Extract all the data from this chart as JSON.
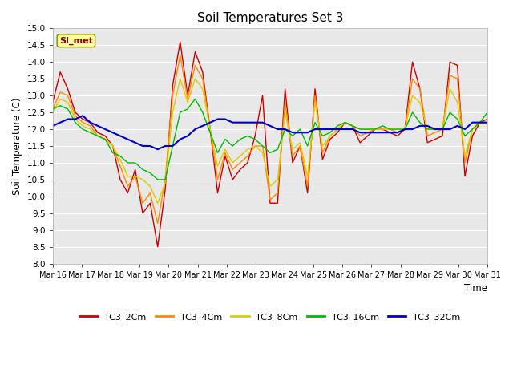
{
  "title": "Soil Temperatures Set 3",
  "xlabel": "Time",
  "ylabel": "Soil Temperature (C)",
  "ylim": [
    8.0,
    15.0
  ],
  "yticks": [
    8.0,
    8.5,
    9.0,
    9.5,
    10.0,
    10.5,
    11.0,
    11.5,
    12.0,
    12.5,
    13.0,
    13.5,
    14.0,
    14.5,
    15.0
  ],
  "legend_label": "SI_met",
  "series_order": [
    "TC3_2Cm",
    "TC3_4Cm",
    "TC3_8Cm",
    "TC3_16Cm",
    "TC3_32Cm"
  ],
  "series": {
    "TC3_2Cm": {
      "color": "#cc0000",
      "lw": 1.0
    },
    "TC3_4Cm": {
      "color": "#ff8800",
      "lw": 1.0
    },
    "TC3_8Cm": {
      "color": "#ddcc00",
      "lw": 1.0
    },
    "TC3_16Cm": {
      "color": "#00bb00",
      "lw": 1.0
    },
    "TC3_32Cm": {
      "color": "#0000cc",
      "lw": 1.5
    }
  },
  "xtick_labels": [
    "Mar 16",
    "Mar 17",
    "Mar 18",
    "Mar 19",
    "Mar 20",
    "Mar 21",
    "Mar 22",
    "Mar 23",
    "Mar 24",
    "Mar 25",
    "Mar 26",
    "Mar 27",
    "Mar 28",
    "Mar 29",
    "Mar 30",
    "Mar 31"
  ],
  "data": {
    "TC3_2Cm": [
      12.8,
      13.7,
      13.2,
      12.5,
      12.3,
      12.2,
      11.9,
      11.8,
      11.5,
      10.5,
      10.1,
      10.8,
      9.5,
      9.8,
      8.5,
      10.2,
      13.3,
      14.6,
      13.0,
      14.3,
      13.7,
      12.0,
      10.1,
      11.2,
      10.5,
      10.8,
      11.0,
      11.8,
      13.0,
      9.8,
      9.8,
      13.2,
      11.0,
      11.5,
      10.1,
      13.2,
      11.1,
      11.7,
      11.9,
      12.2,
      12.1,
      11.6,
      11.8,
      12.0,
      12.0,
      11.9,
      11.8,
      12.0,
      14.0,
      13.2,
      11.6,
      11.7,
      11.8,
      14.0,
      13.9,
      10.6,
      11.8,
      12.2,
      12.3
    ],
    "TC3_4Cm": [
      12.6,
      13.1,
      13.0,
      12.4,
      12.2,
      12.1,
      11.8,
      11.7,
      11.5,
      10.9,
      10.3,
      10.6,
      9.8,
      10.1,
      9.2,
      10.5,
      13.0,
      14.2,
      12.9,
      13.9,
      13.5,
      12.0,
      10.5,
      11.3,
      10.8,
      11.0,
      11.2,
      11.5,
      11.5,
      9.9,
      10.1,
      12.8,
      11.2,
      11.5,
      10.3,
      13.0,
      11.3,
      11.8,
      12.0,
      12.2,
      12.1,
      11.8,
      11.9,
      12.0,
      12.0,
      12.0,
      11.9,
      12.0,
      13.5,
      13.2,
      11.8,
      11.9,
      12.0,
      13.6,
      13.5,
      11.0,
      12.0,
      12.2,
      12.2
    ],
    "TC3_8Cm": [
      12.5,
      12.9,
      12.8,
      12.3,
      12.1,
      12.0,
      11.8,
      11.7,
      11.5,
      11.1,
      10.6,
      10.6,
      10.5,
      10.3,
      9.8,
      10.4,
      12.5,
      13.5,
      12.8,
      13.5,
      13.2,
      12.0,
      10.9,
      11.4,
      11.0,
      11.2,
      11.4,
      11.5,
      11.3,
      10.3,
      10.5,
      12.5,
      11.4,
      11.6,
      10.6,
      12.8,
      11.5,
      11.8,
      12.0,
      12.2,
      12.1,
      12.0,
      12.0,
      12.0,
      12.0,
      12.0,
      12.0,
      12.0,
      13.0,
      12.8,
      12.0,
      12.0,
      12.0,
      13.2,
      12.8,
      11.2,
      12.0,
      12.2,
      12.2
    ],
    "TC3_16Cm": [
      12.6,
      12.7,
      12.6,
      12.2,
      12.0,
      11.9,
      11.8,
      11.7,
      11.3,
      11.2,
      11.0,
      11.0,
      10.8,
      10.7,
      10.5,
      10.5,
      11.5,
      12.5,
      12.6,
      12.9,
      12.5,
      11.9,
      11.3,
      11.7,
      11.5,
      11.7,
      11.8,
      11.7,
      11.5,
      11.3,
      11.4,
      12.0,
      11.8,
      12.0,
      11.5,
      12.2,
      11.8,
      11.9,
      12.1,
      12.2,
      12.1,
      12.0,
      12.0,
      12.0,
      12.1,
      12.0,
      12.0,
      12.0,
      12.5,
      12.2,
      12.0,
      12.0,
      12.0,
      12.5,
      12.3,
      11.8,
      12.0,
      12.2,
      12.5
    ],
    "TC3_32Cm": [
      12.1,
      12.2,
      12.3,
      12.3,
      12.4,
      12.2,
      12.1,
      12.0,
      11.9,
      11.8,
      11.7,
      11.6,
      11.5,
      11.5,
      11.4,
      11.5,
      11.5,
      11.7,
      11.8,
      12.0,
      12.1,
      12.2,
      12.3,
      12.3,
      12.2,
      12.2,
      12.2,
      12.2,
      12.2,
      12.1,
      12.0,
      12.0,
      11.9,
      11.9,
      11.9,
      12.0,
      12.0,
      12.0,
      12.0,
      12.0,
      12.0,
      11.9,
      11.9,
      11.9,
      11.9,
      11.9,
      11.9,
      12.0,
      12.0,
      12.1,
      12.1,
      12.0,
      12.0,
      12.0,
      12.1,
      12.0,
      12.2,
      12.2,
      12.2
    ]
  }
}
